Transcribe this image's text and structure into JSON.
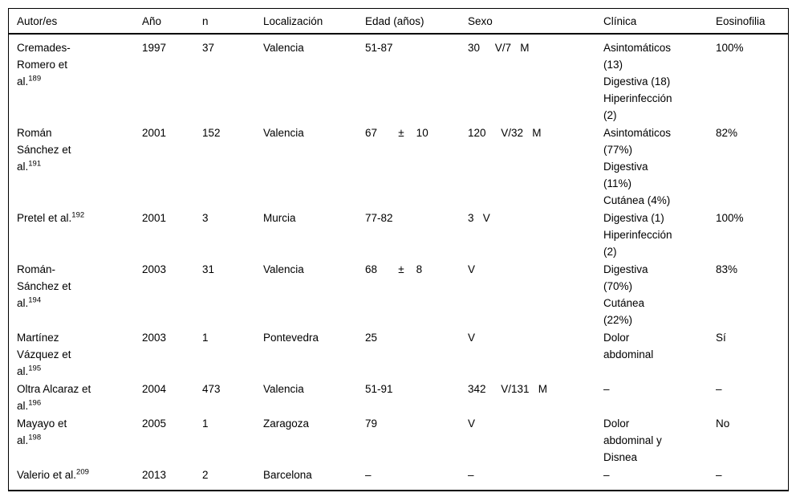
{
  "table": {
    "columns": [
      {
        "label": "Autor/es"
      },
      {
        "label": "Año"
      },
      {
        "label": "n"
      },
      {
        "label": "Localización"
      },
      {
        "label": "Edad (años)"
      },
      {
        "label": "Sexo"
      },
      {
        "label": "Clínica"
      },
      {
        "label": "Eosinofilia"
      }
    ],
    "rows": [
      {
        "autor": "Cremades-\nRomero et\nal.",
        "ref": "189",
        "ano": "1997",
        "n": "37",
        "localizacion": "Valencia",
        "edad": "51-87",
        "sexo": "30     V/7   M",
        "clinica": "Asintomáticos\n(13)\nDigestiva (18)\nHiperinfección\n(2)",
        "eosinofilia": "100%"
      },
      {
        "autor": "Román\nSánchez et\nal.",
        "ref": "191",
        "ano": "2001",
        "n": "152",
        "localizacion": "Valencia",
        "edad": "67       ±    10",
        "sexo": "120     V/32   M",
        "clinica": "Asintomáticos\n(77%)\nDigestiva\n(11%)\nCutánea (4%)",
        "eosinofilia": "82%"
      },
      {
        "autor": "Pretel et al.",
        "ref": "192",
        "ano": "2001",
        "n": "3",
        "localizacion": "Murcia",
        "edad": "77-82",
        "sexo": "3   V",
        "clinica": "Digestiva (1)\nHiperinfección\n(2)",
        "eosinofilia": "100%"
      },
      {
        "autor": "Román-\nSánchez et\nal.",
        "ref": "194",
        "ano": "2003",
        "n": "31",
        "localizacion": "Valencia",
        "edad": "68       ±    8",
        "sexo": "V",
        "clinica": "Digestiva\n(70%)\nCutánea\n(22%)",
        "eosinofilia": "83%"
      },
      {
        "autor": "Martínez\nVázquez et\nal.",
        "ref": "195",
        "ano": "2003",
        "n": "1",
        "localizacion": "Pontevedra",
        "edad": "25",
        "sexo": "V",
        "clinica": "Dolor\nabdominal",
        "eosinofilia": "Sí"
      },
      {
        "autor": "Oltra Alcaraz et\nal.",
        "ref": "196",
        "ano": "2004",
        "n": "473",
        "localizacion": "Valencia",
        "edad": "51-91",
        "sexo": "342     V/131   M",
        "clinica": "–",
        "eosinofilia": "–"
      },
      {
        "autor": "Mayayo et\nal.",
        "ref": "198",
        "ano": "2005",
        "n": "1",
        "localizacion": "Zaragoza",
        "edad": "79",
        "sexo": "V",
        "clinica": "Dolor\nabdominal y\nDisnea",
        "eosinofilia": "No"
      },
      {
        "autor": "Valerio et al.",
        "ref": "209",
        "ano": "2013",
        "n": "2",
        "localizacion": "Barcelona",
        "edad": "–",
        "sexo": "–",
        "clinica": "–",
        "eosinofilia": "–"
      }
    ]
  },
  "colors": {
    "text": "#000000",
    "border": "#000000",
    "background": "#ffffff"
  }
}
